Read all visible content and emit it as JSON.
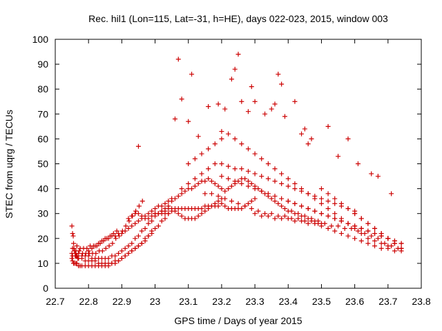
{
  "chart_data": {
    "type": "scatter",
    "title": "Rec. hil1 (Lon=115, Lat=-31, h=HE), days 022-023, 2015, window 003",
    "xlabel": "GPS time / Days of year 2015",
    "ylabel": "STEC from uqrg / TECUs",
    "xlim": [
      22.7,
      23.8
    ],
    "ylim": [
      0,
      100
    ],
    "xticks": [
      "22.7",
      "22.8",
      "22.9",
      "23",
      "23.1",
      "23.2",
      "23.3",
      "23.4",
      "23.5",
      "23.6",
      "23.7",
      "23.8"
    ],
    "yticks": [
      "0",
      "10",
      "20",
      "30",
      "40",
      "50",
      "60",
      "70",
      "80",
      "90",
      "100"
    ],
    "grid": false,
    "legend": "none",
    "marker": "+",
    "color": "#cc0000",
    "series": [
      {
        "x": [
          22.75,
          22.752,
          22.755,
          22.758,
          22.762,
          22.765,
          22.77,
          22.775,
          22.78,
          22.79,
          22.8,
          22.81,
          22.82,
          22.83,
          22.84,
          22.85,
          22.86,
          22.87,
          22.88,
          22.89,
          22.9,
          22.91,
          22.92,
          22.93,
          22.94,
          22.95,
          22.96,
          22.97,
          22.98,
          22.99,
          22.752,
          22.76,
          22.77,
          22.78,
          22.79,
          22.8,
          22.81,
          22.82,
          22.83,
          22.84,
          22.85,
          22.86,
          22.87,
          22.88,
          22.89,
          22.9,
          22.91,
          22.92,
          22.93,
          22.94,
          22.95,
          22.96,
          22.97,
          22.98,
          22.99,
          23.0,
          23.01,
          23.02,
          23.03,
          23.04,
          22.75,
          22.76,
          22.77,
          22.78,
          22.79,
          22.8,
          22.81,
          22.82,
          22.83,
          22.84,
          22.85,
          22.86,
          22.87,
          22.88,
          22.89,
          22.9,
          22.91,
          22.92,
          22.93,
          22.94,
          22.95,
          22.96,
          22.97,
          22.98,
          22.99,
          23.0,
          23.01,
          23.02,
          23.03,
          23.04,
          22.752,
          22.762,
          22.772,
          22.782,
          22.792,
          22.802,
          22.812,
          22.822,
          22.832,
          22.842,
          22.852,
          22.862,
          22.872,
          22.882,
          22.892,
          22.902,
          22.912,
          22.922,
          22.932,
          22.942,
          22.952,
          22.962,
          22.755,
          22.765,
          22.775,
          22.785,
          22.795,
          22.805,
          22.815,
          22.825,
          22.835,
          22.845,
          22.855,
          22.865,
          22.875,
          22.885,
          22.75,
          22.752,
          22.754,
          22.756,
          22.758,
          22.76,
          22.762,
          22.764,
          22.766,
          22.768,
          22.8,
          22.81,
          22.82,
          22.83,
          22.84,
          22.85,
          22.86,
          22.87,
          22.88,
          22.89,
          22.9,
          22.91,
          22.92,
          22.93,
          22.94,
          22.95,
          22.96,
          22.97,
          22.98,
          22.99,
          23.0,
          23.01,
          23.02,
          23.03,
          23.04,
          23.05,
          22.92,
          22.93,
          22.94,
          22.95,
          22.96,
          22.97,
          22.98,
          22.99,
          23.0,
          23.01,
          23.02,
          23.03,
          23.04,
          23.05,
          23.06,
          23.07,
          23.08,
          23.09,
          23.1,
          23.11,
          23.12,
          23.13,
          23.14,
          23.15,
          23.16,
          23.17,
          23.18,
          23.19,
          23.2,
          23.0,
          23.01,
          23.02,
          23.03,
          23.04,
          23.05,
          23.06,
          23.07,
          23.08,
          23.09,
          23.1,
          23.11,
          23.12,
          23.13,
          23.14,
          23.15,
          23.16,
          23.17,
          23.18,
          23.19,
          23.2,
          23.21,
          23.22,
          23.23,
          23.24,
          23.25,
          23.26,
          23.27,
          23.28,
          23.29,
          23.3,
          23.05,
          23.06,
          23.07,
          23.08,
          23.09,
          23.1,
          23.11,
          23.12,
          23.13,
          23.14,
          23.15,
          23.16,
          23.17,
          23.18,
          23.19,
          23.2,
          23.21,
          23.22,
          23.23,
          23.24,
          23.25,
          23.26,
          23.27,
          23.28,
          23.29,
          23.3,
          23.31,
          23.32,
          23.33,
          23.34,
          23.35,
          23.36,
          23.37,
          23.38,
          23.39,
          23.4,
          23.41,
          23.42,
          23.43,
          23.44,
          23.45,
          23.46,
          23.47,
          23.48,
          23.49,
          23.5,
          23.08,
          23.1,
          23.12,
          23.14,
          23.16,
          23.18,
          23.2,
          23.22,
          23.24,
          23.26,
          23.28,
          23.3,
          23.32,
          23.34,
          23.36,
          23.38,
          23.4,
          23.42,
          23.44,
          23.46,
          23.48,
          23.5,
          23.52,
          23.54,
          23.56,
          23.58,
          23.6,
          23.1,
          23.12,
          23.14,
          23.16,
          23.18,
          23.2,
          23.22,
          23.24,
          23.26,
          23.28,
          23.3,
          23.32,
          23.34,
          23.36,
          23.38,
          23.4,
          23.42,
          23.44,
          23.46,
          23.48,
          23.5,
          23.52,
          23.54,
          23.56,
          23.58,
          23.6,
          23.62,
          23.64,
          23.66,
          23.68,
          23.7,
          23.15,
          23.17,
          23.19,
          23.21,
          23.23,
          23.25,
          23.27,
          23.29,
          23.31,
          23.33,
          23.35,
          23.37,
          23.39,
          23.41,
          23.43,
          23.45,
          23.47,
          23.49,
          23.51,
          23.53,
          23.55,
          23.57,
          23.59,
          23.61,
          23.63,
          23.65,
          23.67,
          23.69,
          23.71,
          23.73,
          23.2,
          23.22,
          23.24,
          23.26,
          23.28,
          23.3,
          23.32,
          23.34,
          23.36,
          23.38,
          23.4,
          23.42,
          23.44,
          23.46,
          23.48,
          23.5,
          23.52,
          23.54,
          23.56,
          23.58,
          23.6,
          23.62,
          23.64,
          23.66,
          23.68,
          23.7,
          23.72,
          23.74,
          23.3,
          23.32,
          23.34,
          23.36,
          23.38,
          23.4,
          23.42,
          23.44,
          23.46,
          23.48,
          23.5,
          23.52,
          23.54,
          23.56,
          23.58,
          23.6,
          23.62,
          23.64,
          23.66,
          23.68,
          23.7,
          23.72,
          23.74,
          23.4,
          23.42,
          23.44,
          23.46,
          23.48,
          23.5,
          23.52,
          23.54,
          23.56,
          23.58,
          23.6,
          23.62,
          23.64,
          23.66,
          23.68,
          23.7,
          23.72,
          23.74,
          23.5,
          23.52,
          23.54,
          23.56,
          23.58,
          23.6,
          23.62,
          23.64,
          23.66,
          23.68,
          23.7,
          23.72,
          23.74,
          23.6,
          23.62,
          23.64,
          23.66,
          23.68,
          23.7,
          23.72,
          23.74,
          23.07,
          23.08,
          23.11,
          23.16,
          23.19,
          23.23,
          23.24,
          23.25,
          23.26,
          23.29,
          23.3,
          23.33,
          23.36,
          23.37,
          23.38,
          23.42,
          23.45,
          23.47,
          23.52,
          23.58,
          23.65,
          23.71,
          22.95,
          23.06,
          23.1,
          23.13,
          23.2,
          23.21,
          23.28,
          23.35,
          23.39,
          23.44,
          23.46,
          23.55,
          23.61,
          23.67
        ],
        "y": [
          12,
          11,
          10,
          10,
          10,
          10,
          9,
          9,
          9,
          9,
          9,
          9,
          9,
          9,
          9,
          9,
          9,
          10,
          10,
          11,
          12,
          13,
          14,
          15,
          16,
          17,
          18,
          20,
          21,
          23,
          13,
          13,
          12,
          12,
          11,
          11,
          11,
          11,
          10,
          10,
          10,
          10,
          10,
          11,
          11,
          12,
          13,
          14,
          15,
          16,
          17,
          18,
          19,
          21,
          22,
          24,
          25,
          27,
          28,
          30,
          14,
          14,
          14,
          13,
          13,
          13,
          12,
          12,
          12,
          12,
          12,
          12,
          13,
          13,
          14,
          15,
          16,
          17,
          18,
          20,
          21,
          23,
          24,
          26,
          27,
          29,
          30,
          31,
          32,
          33,
          16,
          15,
          15,
          14,
          14,
          14,
          14,
          14,
          15,
          15,
          16,
          17,
          18,
          20,
          21,
          23,
          25,
          27,
          29,
          31,
          33,
          35,
          18,
          17,
          16,
          16,
          16,
          17,
          17,
          17,
          18,
          19,
          20,
          21,
          22,
          23,
          25,
          22,
          21,
          16,
          15,
          14,
          13,
          13,
          13,
          12,
          15,
          16,
          17,
          18,
          19,
          20,
          20,
          21,
          21,
          22,
          22,
          23,
          24,
          25,
          26,
          27,
          28,
          29,
          30,
          31,
          32,
          33,
          33,
          34,
          35,
          36,
          28,
          29,
          30,
          30,
          29,
          28,
          28,
          29,
          30,
          30,
          31,
          31,
          32,
          32,
          31,
          30,
          29,
          28,
          28,
          28,
          28,
          29,
          30,
          31,
          32,
          33,
          34,
          35,
          36,
          30,
          30,
          30,
          30,
          30,
          31,
          32,
          32,
          32,
          32,
          32,
          32,
          32,
          32,
          32,
          33,
          33,
          33,
          33,
          33,
          34,
          33,
          32,
          32,
          32,
          32,
          32,
          33,
          34,
          35,
          36,
          35,
          36,
          37,
          38,
          39,
          40,
          40,
          41,
          42,
          43,
          43,
          44,
          43,
          42,
          41,
          40,
          39,
          40,
          41,
          42,
          43,
          44,
          44,
          43,
          42,
          41,
          40,
          39,
          38,
          37,
          36,
          35,
          34,
          33,
          32,
          31,
          31,
          30,
          30,
          29,
          29,
          28,
          28,
          27,
          27,
          26,
          40,
          42,
          44,
          46,
          48,
          50,
          50,
          49,
          48,
          48,
          47,
          46,
          45,
          44,
          43,
          42,
          41,
          40,
          39,
          38,
          37,
          36,
          35,
          34,
          33,
          32,
          31,
          50,
          52,
          54,
          56,
          58,
          60,
          62,
          60,
          58,
          56,
          54,
          52,
          50,
          48,
          46,
          44,
          42,
          40,
          38,
          36,
          34,
          32,
          30,
          28,
          26,
          24,
          22,
          20,
          19,
          18,
          17,
          38,
          38,
          37,
          36,
          35,
          34,
          33,
          32,
          31,
          30,
          30,
          29,
          29,
          28,
          28,
          27,
          27,
          26,
          26,
          25,
          25,
          24,
          24,
          23,
          22,
          21,
          20,
          18,
          17,
          16,
          45,
          44,
          43,
          42,
          41,
          40,
          39,
          38,
          37,
          36,
          35,
          34,
          33,
          32,
          31,
          30,
          29,
          28,
          27,
          26,
          25,
          24,
          23,
          22,
          21,
          20,
          19,
          18,
          30,
          29,
          29,
          28,
          28,
          28,
          27,
          27,
          26,
          26,
          25,
          24,
          23,
          22,
          21,
          20,
          19,
          18,
          17,
          16,
          16,
          15,
          15,
          35,
          34,
          33,
          32,
          31,
          30,
          29,
          28,
          27,
          26,
          25,
          24,
          23,
          22,
          21,
          20,
          19,
          18,
          40,
          38,
          36,
          34,
          32,
          30,
          28,
          26,
          24,
          22,
          20,
          18,
          16,
          30,
          28,
          26,
          24,
          22,
          20,
          18,
          16,
          92,
          76,
          86,
          73,
          74,
          84,
          88,
          94,
          75,
          81,
          75,
          70,
          74,
          86,
          82,
          75,
          64,
          60,
          65,
          60,
          46,
          38,
          57,
          68,
          67,
          61,
          63,
          72,
          71,
          72,
          69,
          62,
          58,
          53,
          50,
          45
        ]
      }
    ]
  }
}
